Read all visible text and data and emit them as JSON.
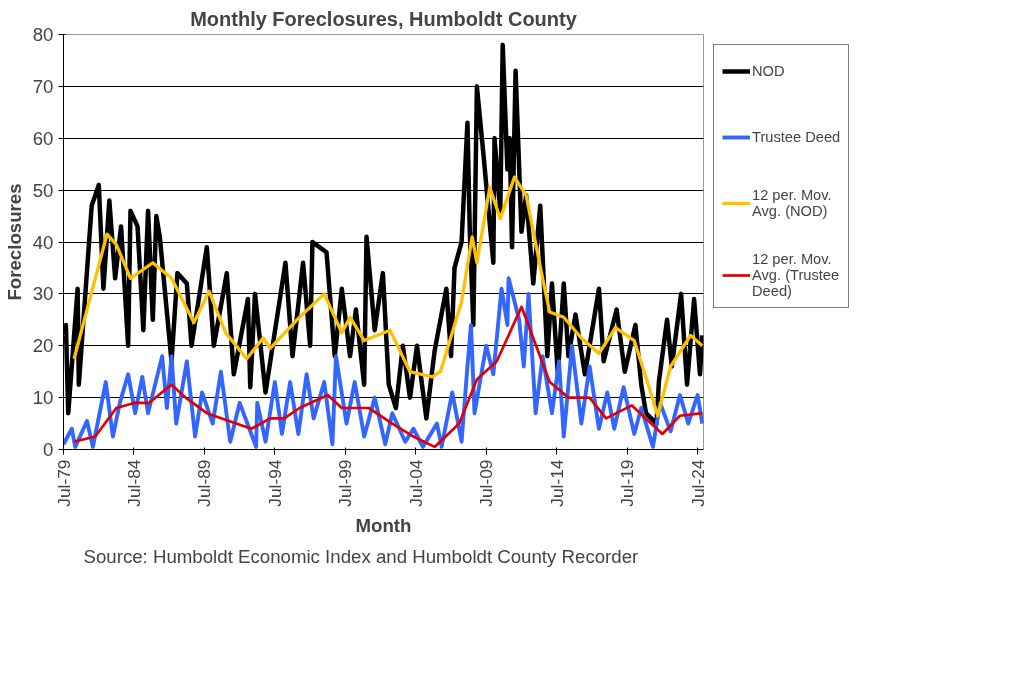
{
  "chart_data": {
    "type": "line",
    "title": "Monthly Foreclosures, Humboldt County",
    "xlabel": "Month",
    "ylabel": "Foreclosures",
    "annotations": [
      "Source: Humboldt Economic Index and Humboldt County Recorder"
    ],
    "xlim": [
      "1979-07",
      "2024-12"
    ],
    "xticks": [
      {
        "value": "1979-07",
        "label": "Jul-79"
      },
      {
        "value": "1984-07",
        "label": "Jul-84"
      },
      {
        "value": "1989-07",
        "label": "Jul-89"
      },
      {
        "value": "1994-07",
        "label": "Jul-94"
      },
      {
        "value": "1999-07",
        "label": "Jul-99"
      },
      {
        "value": "2004-07",
        "label": "Jul-04"
      },
      {
        "value": "2009-07",
        "label": "Jul-09"
      },
      {
        "value": "2014-07",
        "label": "Jul-14"
      },
      {
        "value": "2019-07",
        "label": "Jul-19"
      },
      {
        "value": "2024-07",
        "label": "Jul-24"
      }
    ],
    "ylim": [
      0,
      80
    ],
    "yticks": [
      0,
      10,
      20,
      30,
      40,
      50,
      60,
      70,
      80
    ],
    "grid": "y",
    "legend": "right",
    "series": [
      {
        "name": "NOD",
        "color": "#000000",
        "x": [
          "1979-07",
          "1979-09",
          "1979-11",
          "1980-07",
          "1980-08",
          "1981-07",
          "1982-01",
          "1982-05",
          "1982-10",
          "1983-03",
          "1983-08",
          "1984-02",
          "1984-04",
          "1984-10",
          "1985-03",
          "1985-07",
          "1985-11",
          "1986-02",
          "1986-05",
          "1987-03",
          "1987-08",
          "1988-04",
          "1988-08",
          "1989-09",
          "1990-03",
          "1991-02",
          "1991-08",
          "1992-08",
          "1992-10",
          "1993-02",
          "1993-11",
          "1995-04",
          "1995-10",
          "1996-07",
          "1997-01",
          "1997-03",
          "1998-03",
          "1998-10",
          "1999-04",
          "1999-11",
          "2000-04",
          "2000-11",
          "2001-01",
          "2001-08",
          "2002-03",
          "2002-08",
          "2003-02",
          "2003-08",
          "2004-02",
          "2004-08",
          "2005-04",
          "2005-11",
          "2006-09",
          "2007-01",
          "2007-04",
          "2007-10",
          "2008-03",
          "2008-05",
          "2008-08",
          "2008-11",
          "2009-05",
          "2010-01",
          "2010-02",
          "2010-07",
          "2010-09",
          "2011-01",
          "2011-03",
          "2011-05",
          "2011-08",
          "2012-01",
          "2012-05",
          "2012-11",
          "2013-05",
          "2013-11",
          "2014-03",
          "2014-08",
          "2015-01",
          "2015-05",
          "2015-11",
          "2016-07",
          "2017-07",
          "2017-11",
          "2018-10",
          "2019-05",
          "2020-02",
          "2020-07",
          "2020-11",
          "2021-08",
          "2021-10",
          "2022-05",
          "2022-09",
          "2023-05",
          "2023-10",
          "2024-04",
          "2024-09",
          "2024-11"
        ],
        "values": [
          22,
          24,
          7,
          31,
          12.5,
          47,
          51,
          31,
          48,
          33,
          43,
          20,
          46,
          43,
          23,
          46,
          25,
          45,
          41,
          17,
          34,
          32,
          20,
          39,
          20,
          34,
          14.5,
          29,
          12,
          30,
          11,
          36,
          18,
          36,
          20,
          40,
          38,
          18,
          31,
          18,
          27,
          12.5,
          41,
          23,
          34,
          12.5,
          8,
          20,
          10,
          20,
          6,
          19,
          31,
          18,
          35,
          40,
          63,
          42,
          24,
          70,
          56,
          36,
          60,
          46,
          78,
          54,
          60,
          39,
          73,
          42,
          49,
          32,
          47,
          18,
          32,
          14.5,
          32,
          18,
          26,
          14.5,
          31,
          17,
          27,
          15,
          24,
          12.5,
          7,
          5,
          13,
          25,
          16,
          30,
          12.5,
          29,
          14.5,
          22
        ]
      },
      {
        "name": "Trustee Deed",
        "color": "#3366ff",
        "x": [
          "1979-07",
          "1980-02",
          "1980-05",
          "1981-03",
          "1981-08",
          "1982-07",
          "1983-01",
          "1983-07",
          "1984-02",
          "1984-08",
          "1985-02",
          "1985-07",
          "1986-07",
          "1986-11",
          "1987-03",
          "1987-07",
          "1988-04",
          "1988-11",
          "1989-05",
          "1990-02",
          "1990-09",
          "1991-05",
          "1992-01",
          "1993-03",
          "1993-04",
          "1993-11",
          "1994-07",
          "1995-01",
          "1995-08",
          "1996-03",
          "1996-10",
          "1997-04",
          "1998-01",
          "1998-08",
          "1998-11",
          "1999-08",
          "2000-03",
          "2000-11",
          "2001-08",
          "2002-05",
          "2002-11",
          "2003-10",
          "2004-05",
          "2005-01",
          "2006-01",
          "2006-05",
          "2007-02",
          "2007-10",
          "2008-03",
          "2008-06",
          "2008-09",
          "2009-07",
          "2010-01",
          "2010-08",
          "2011-01",
          "2011-02",
          "2011-11",
          "2012-03",
          "2012-07",
          "2013-01",
          "2013-07",
          "2014-03",
          "2014-09",
          "2015-01",
          "2015-08",
          "2016-04",
          "2016-11",
          "2017-07",
          "2018-02",
          "2018-08",
          "2019-04",
          "2020-01",
          "2020-07",
          "2021-05",
          "2021-11",
          "2022-08",
          "2023-04",
          "2023-11",
          "2024-07",
          "2024-11"
        ],
        "values": [
          1,
          4,
          0.5,
          5.5,
          0.5,
          13,
          2.5,
          9,
          14.5,
          7,
          14,
          7,
          18,
          8,
          18,
          5,
          17,
          2.5,
          11,
          5,
          15,
          1.5,
          9,
          0.5,
          9,
          1.5,
          13,
          3,
          13,
          3,
          14.5,
          6,
          13,
          1,
          18,
          5,
          13,
          2.5,
          10,
          1,
          7,
          1.5,
          4,
          0.5,
          5,
          0.5,
          11,
          1.5,
          16,
          24,
          7,
          20,
          14.5,
          31,
          24,
          33,
          25,
          16,
          30,
          7,
          18,
          7,
          17,
          2.5,
          20,
          5,
          16,
          4,
          11,
          4,
          12,
          3,
          8,
          0.5,
          9,
          3.5,
          10.5,
          5,
          10.5,
          5
        ]
      },
      {
        "name": "12 per. Mov. Avg. (NOD)",
        "color": "#ffc000",
        "x": [
          "1980-04",
          "1982-08",
          "1983-04",
          "1984-04",
          "1985-11",
          "1987-03",
          "1988-10",
          "1989-11",
          "1991-01",
          "1992-07",
          "1993-09",
          "1994-03",
          "1996-04",
          "1998-01",
          "1999-04",
          "1999-11",
          "2000-11",
          "2002-09",
          "2004-02",
          "2005-09",
          "2006-04",
          "2007-10",
          "2008-07",
          "2008-11",
          "2009-10",
          "2010-07",
          "2011-07",
          "2012-05",
          "2013-07",
          "2014-01",
          "2015-01",
          "2016-04",
          "2017-07",
          "2018-09",
          "2020-01",
          "2021-01",
          "2021-09",
          "2022-08",
          "2024-01",
          "2024-11"
        ],
        "values": [
          17.5,
          41.5,
          39.5,
          33,
          36,
          33,
          24.5,
          30.5,
          22.5,
          17.5,
          21.5,
          19.5,
          25.5,
          30,
          22.5,
          25.5,
          21,
          23,
          15,
          14,
          15,
          28.5,
          41,
          36,
          50.5,
          44.5,
          52.5,
          49,
          33,
          26.5,
          25.5,
          21.5,
          18.5,
          23.5,
          21,
          12.5,
          6.5,
          16,
          22,
          20
        ]
      },
      {
        "name": "12 per. Mov. Avg. (Trustee Deed)",
        "color": "#e00000",
        "x": [
          "1980-04",
          "1981-10",
          "1983-04",
          "1984-08",
          "1985-08",
          "1987-03",
          "1988-03",
          "1989-09",
          "1991-10",
          "1992-11",
          "1994-03",
          "1995-03",
          "1996-04",
          "1998-04",
          "1999-04",
          "2001-03",
          "2002-11",
          "2004-05",
          "2005-11",
          "2007-08",
          "2008-11",
          "2010-04",
          "2012-01",
          "2014-01",
          "2015-05",
          "2016-11",
          "2018-01",
          "2019-11",
          "2022-01",
          "2023-04",
          "2024-11"
        ],
        "values": [
          1.5,
          2.5,
          8,
          9,
          9,
          12.5,
          10,
          7,
          5,
          4,
          6,
          6,
          8,
          10.5,
          8,
          8,
          5,
          2.5,
          0.5,
          5,
          13.5,
          17,
          27.5,
          13,
          10,
          10,
          6,
          8.5,
          3,
          6.5,
          7
        ]
      }
    ]
  }
}
